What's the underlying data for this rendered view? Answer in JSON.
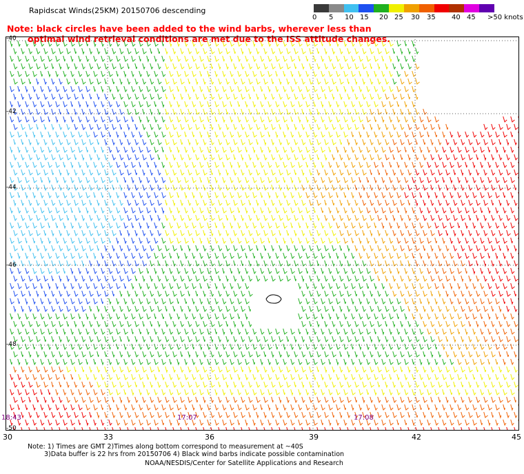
{
  "header": {
    "title": "Rapidscat Winds(25KM) 20150706 descending",
    "note_line1": "Note: black circles have been added to the wind barbs, wherever less than",
    "note_line2": "optimal wind retrieval conditions are met due to the ISS attitude changes."
  },
  "legend": {
    "units": "knots",
    "labels": [
      "0",
      "5",
      "10",
      "15",
      "20",
      "25",
      "30",
      "35",
      "40",
      "45",
      ">50 knots"
    ],
    "colors": [
      "#3a3a3a",
      "#8a8a8a",
      "#40c0f0",
      "#1e50f0",
      "#20b020",
      "#f0f000",
      "#f0a000",
      "#f06000",
      "#f00000",
      "#b03000",
      "#e000e0",
      "#6000b0"
    ]
  },
  "axes": {
    "lat_labels": [
      "-40",
      "-42",
      "-44",
      "-46",
      "-48",
      "-50"
    ],
    "lon_labels": [
      "30",
      "33",
      "36",
      "39",
      "42",
      "45"
    ]
  },
  "time_labels": [
    "18:43",
    "17:07",
    "17:08"
  ],
  "footer": {
    "line1": "Note: 1) Times are GMT 2)Times along bottom correspond to measurement at ~40S",
    "line2": "3)Data buffer is 22 hrs from 20150706 4) Black wind barbs indicate possible contamination",
    "line3": "NOAA/NESDIS/Center for Satellite Applications and Research"
  }
}
